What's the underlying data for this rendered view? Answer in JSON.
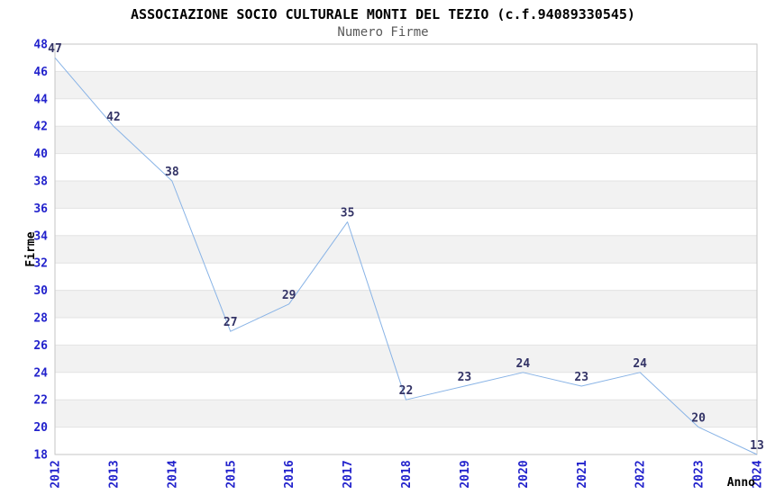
{
  "chart_data": {
    "type": "line",
    "title": "ASSOCIAZIONE SOCIO CULTURALE MONTI DEL TEZIO (c.f.94089330545)",
    "subtitle": "Numero Firme",
    "xlabel": "Anno",
    "ylabel": "Firme",
    "categories": [
      "2012",
      "2013",
      "2014",
      "2015",
      "2016",
      "2017",
      "2018",
      "2019",
      "2020",
      "2021",
      "2022",
      "2023",
      "2024"
    ],
    "values": [
      47,
      42,
      38,
      27,
      29,
      35,
      22,
      23,
      24,
      23,
      24,
      20,
      13
    ],
    "ylim": [
      18,
      48
    ],
    "ytick_step": 2,
    "values_clamped_to_ylim": true,
    "legend": "none",
    "grid": "horizontal-bands-alternating",
    "colors": {
      "line": "#88b3e6",
      "tick_label": "#2222cc",
      "value_label": "#333366",
      "band": "#f2f2f2",
      "gridline": "#e3e3e3",
      "border": "#c6c6c6",
      "title": "#000000",
      "subtitle": "#595959",
      "axis_label": "#000000"
    }
  }
}
